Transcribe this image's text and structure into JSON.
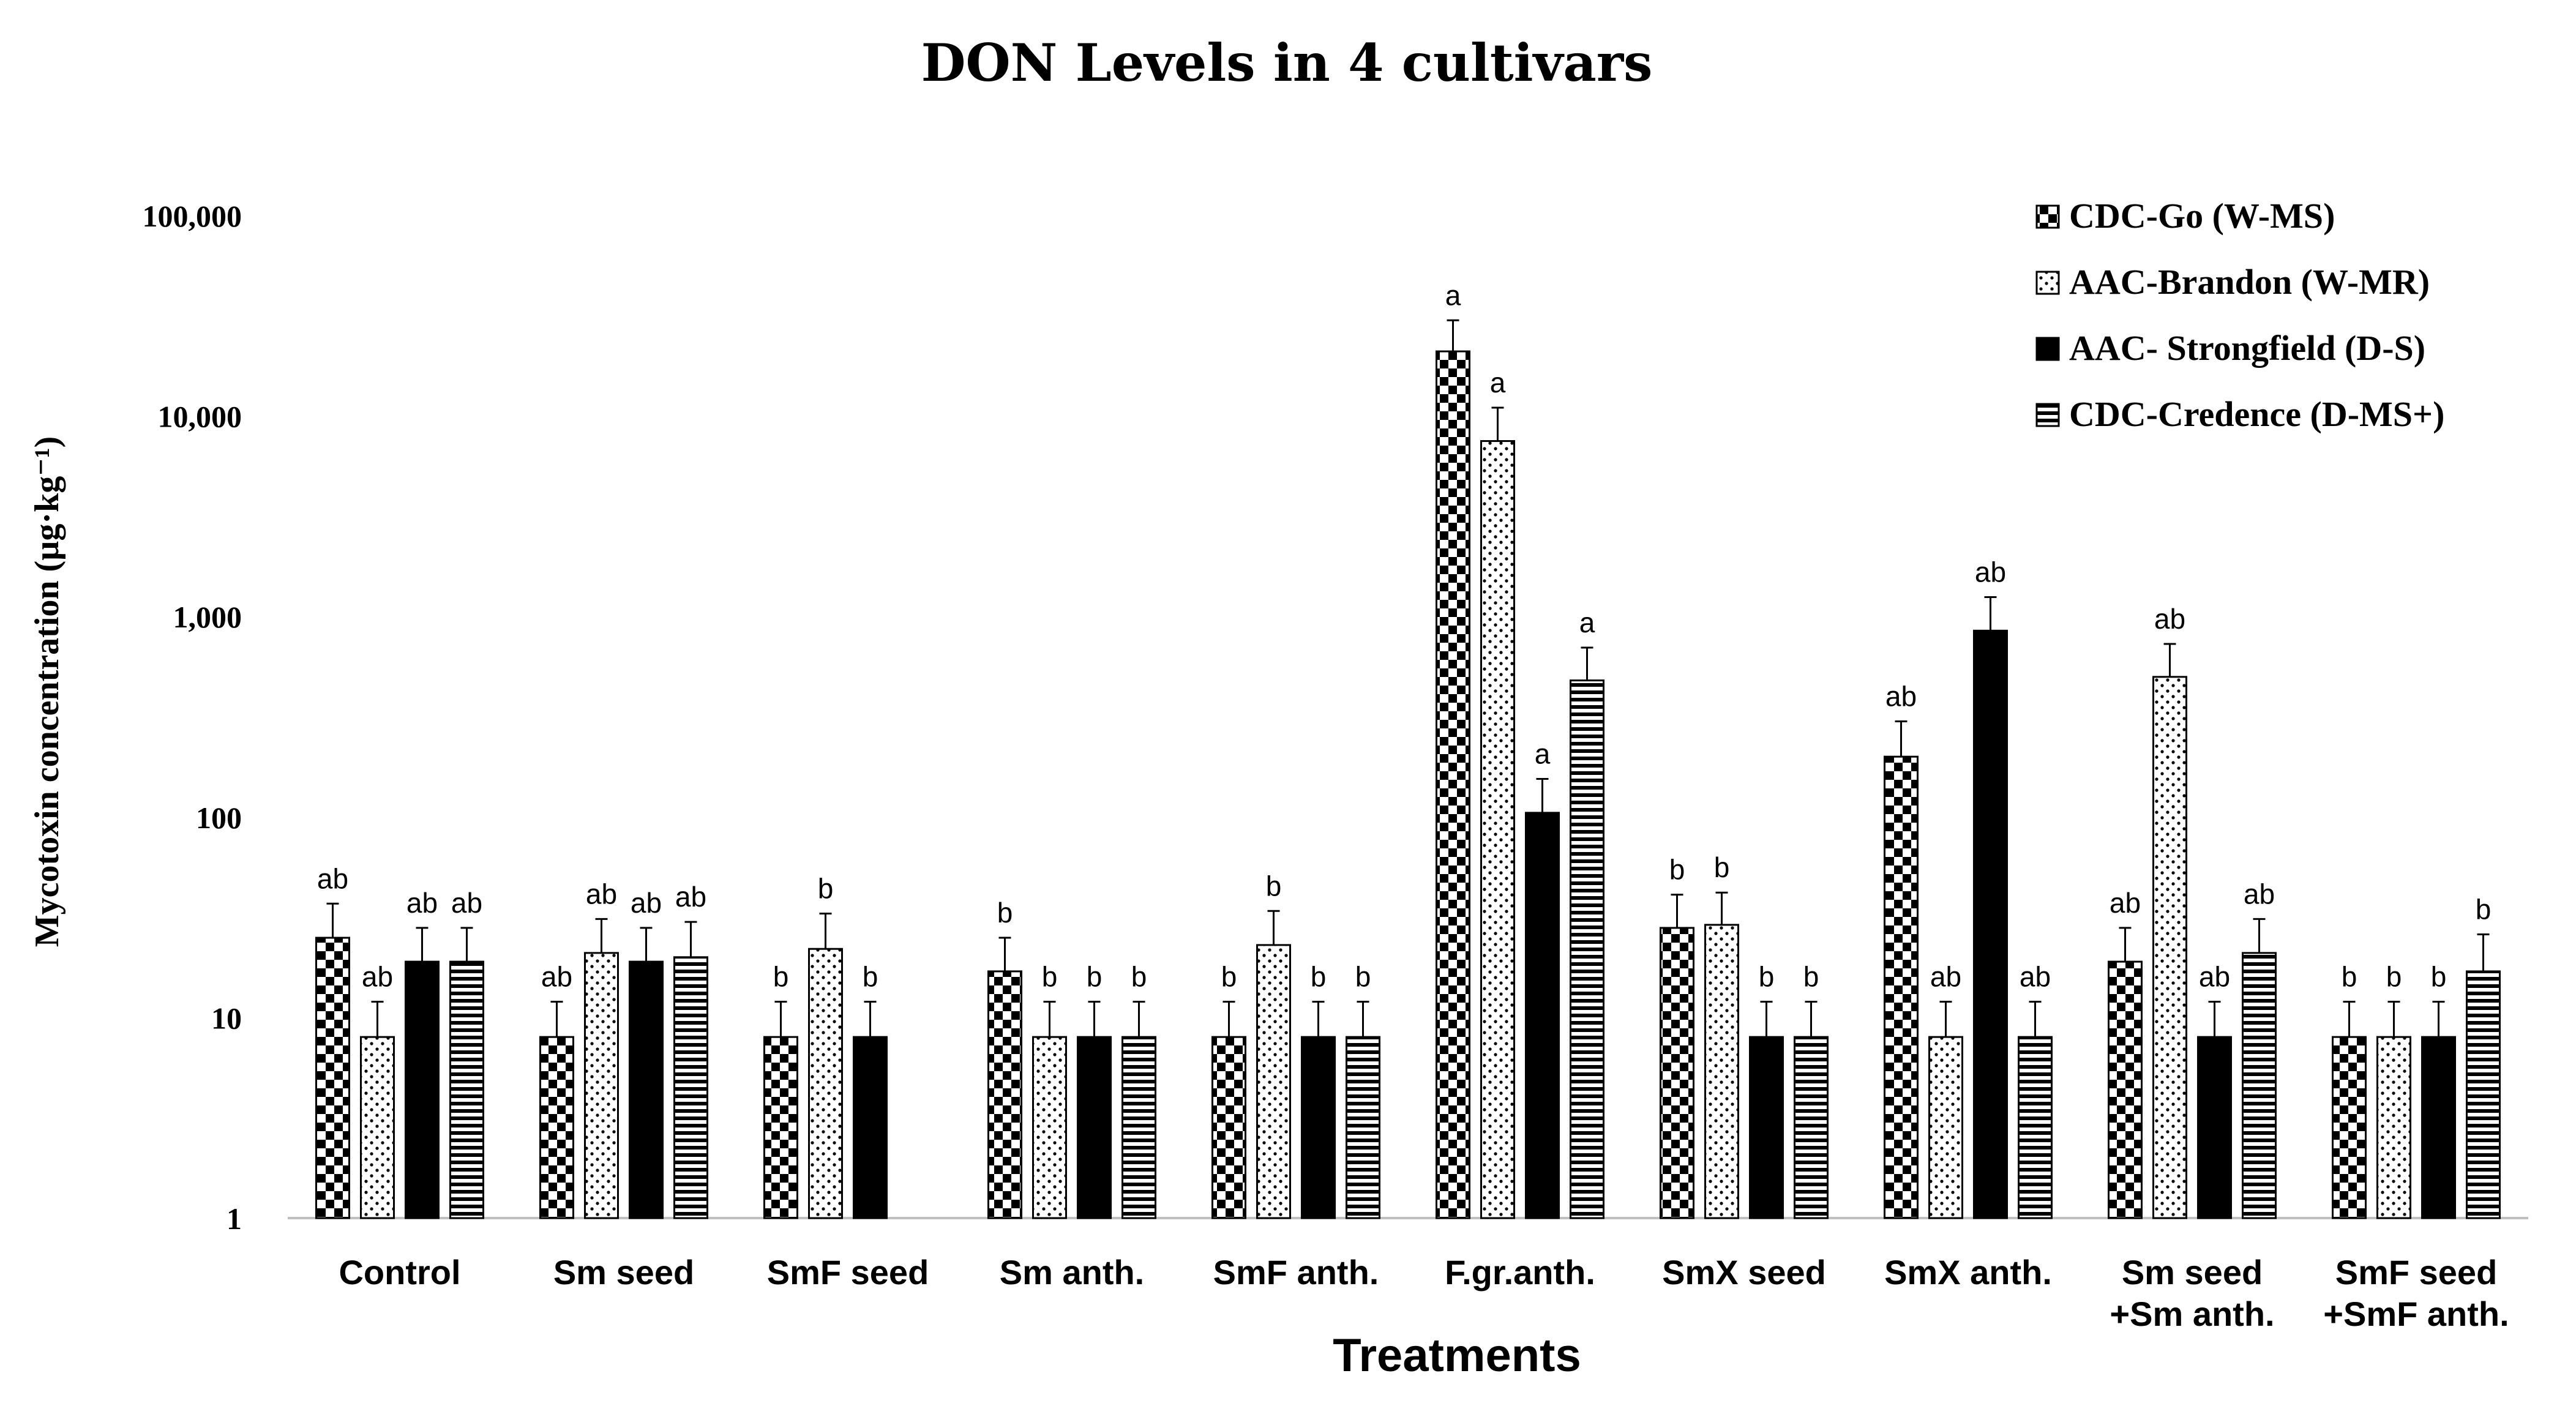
{
  "chart_data": {
    "type": "bar",
    "title": "DON Levels in 4 cultivars",
    "xlabel": "Treatments",
    "ylabel": "Mycotoxin concentration (µg·kg⁻¹)",
    "y_scale": "log",
    "ylim": [
      1,
      100000
    ],
    "y_ticks": [
      1,
      10,
      100,
      1000,
      10000,
      100000
    ],
    "y_tick_labels": [
      "1",
      "10",
      "100",
      "1,000",
      "10,000",
      "100,000"
    ],
    "legend_position": "top-right",
    "categories": [
      [
        "Control"
      ],
      [
        "Sm seed"
      ],
      [
        "SmF seed"
      ],
      [
        "Sm anth."
      ],
      [
        "SmF anth."
      ],
      [
        "F.gr.anth."
      ],
      [
        "SmX seed"
      ],
      [
        "SmX anth."
      ],
      [
        "Sm seed",
        "+Sm anth."
      ],
      [
        "SmF seed",
        "+SmF anth."
      ]
    ],
    "series": [
      {
        "name": "CDC-Go (W-MS)",
        "pattern": "checker",
        "values": [
          25,
          8,
          8,
          17,
          8,
          21000,
          28,
          200,
          19,
          8
        ],
        "error_tops": [
          37,
          12,
          12,
          25,
          12,
          30000,
          41,
          300,
          28,
          12
        ],
        "letters": [
          "ab",
          "ab",
          "b",
          "b",
          "b",
          "a",
          "b",
          "ab",
          "ab",
          "b"
        ]
      },
      {
        "name": "AAC-Brandon (W-MR)",
        "pattern": "dots",
        "values": [
          8,
          21,
          22,
          8,
          23,
          7500,
          29,
          8,
          500,
          8
        ],
        "error_tops": [
          12,
          31,
          33,
          12,
          34,
          11000,
          42,
          12,
          730,
          12
        ],
        "letters": [
          "ab",
          "ab",
          "b",
          "b",
          "b",
          "a",
          "b",
          "ab",
          "ab",
          "b"
        ]
      },
      {
        "name": "AAC- Strongfield (D-S)",
        "pattern": "solid",
        "values": [
          19,
          19,
          8,
          8,
          8,
          105,
          8,
          850,
          8,
          8
        ],
        "error_tops": [
          28,
          28,
          12,
          12,
          12,
          155,
          12,
          1250,
          12,
          12
        ],
        "letters": [
          "ab",
          "ab",
          "b",
          "b",
          "b",
          "a",
          "b",
          "ab",
          "ab",
          "b"
        ]
      },
      {
        "name": "CDC-Credence (D-MS+)",
        "pattern": "hlines",
        "values": [
          19,
          20,
          null,
          8,
          8,
          480,
          8,
          8,
          21,
          17
        ],
        "error_tops": [
          28,
          30,
          null,
          12,
          12,
          700,
          12,
          12,
          31,
          26
        ],
        "letters": [
          "ab",
          "ab",
          null,
          "b",
          "b",
          "a",
          "b",
          "ab",
          "ab",
          "b"
        ]
      }
    ]
  }
}
